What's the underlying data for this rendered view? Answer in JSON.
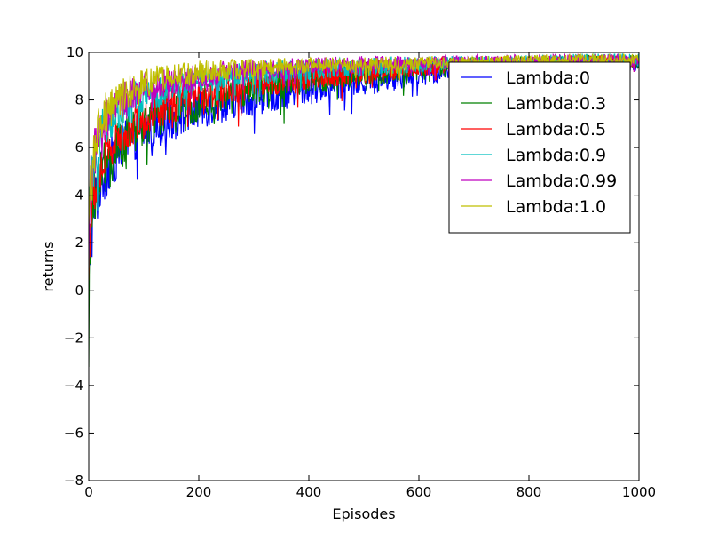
{
  "chart_data": {
    "type": "line",
    "title": "",
    "xlabel": "Episodes",
    "ylabel": "returns",
    "xlim": [
      0,
      1000
    ],
    "ylim": [
      -8,
      10
    ],
    "xticks": [
      "0",
      "200",
      "400",
      "600",
      "800",
      "1000"
    ],
    "yticks": [
      "−8",
      "−6",
      "−4",
      "−2",
      "0",
      "2",
      "4",
      "6",
      "8",
      "10"
    ],
    "grid": false,
    "legend_position": "top-right",
    "x_checkpoints": [
      0,
      1,
      2,
      5,
      10,
      20,
      30,
      50,
      75,
      100,
      150,
      200,
      250,
      300,
      400,
      500,
      600,
      700,
      800,
      900,
      1000
    ],
    "series": [
      {
        "name": "Lambda:0",
        "color": "#0000ff",
        "trend": [
          -1.0,
          0.5,
          1.5,
          2.5,
          3.5,
          4.5,
          5.0,
          5.7,
          6.3,
          6.7,
          7.2,
          7.6,
          7.9,
          8.1,
          8.5,
          8.8,
          9.1,
          9.3,
          9.4,
          9.5,
          9.55
        ],
        "spread": [
          1.5,
          1.5,
          1.5,
          1.5,
          1.4,
          1.3,
          1.2,
          1.1,
          1.0,
          0.95,
          0.9,
          0.85,
          0.8,
          0.75,
          0.7,
          0.6,
          0.5,
          0.45,
          0.4,
          0.35,
          0.35
        ]
      },
      {
        "name": "Lambda:0.3",
        "color": "#008000",
        "trend": [
          -2.0,
          0.0,
          1.0,
          2.5,
          3.8,
          4.8,
          5.4,
          6.0,
          6.5,
          7.0,
          7.5,
          7.9,
          8.2,
          8.5,
          8.8,
          9.1,
          9.3,
          9.45,
          9.5,
          9.55,
          9.6
        ],
        "spread": [
          1.5,
          1.5,
          1.5,
          1.4,
          1.3,
          1.2,
          1.1,
          1.0,
          0.95,
          0.9,
          0.85,
          0.8,
          0.75,
          0.7,
          0.6,
          0.55,
          0.45,
          0.4,
          0.35,
          0.35,
          0.3
        ]
      },
      {
        "name": "Lambda:0.5",
        "color": "#ff0000",
        "trend": [
          0.5,
          1.5,
          2.5,
          3.5,
          4.3,
          5.0,
          5.6,
          6.3,
          6.8,
          7.3,
          7.8,
          8.2,
          8.5,
          8.7,
          9.0,
          9.2,
          9.4,
          9.5,
          9.55,
          9.6,
          9.6
        ],
        "spread": [
          1.4,
          1.4,
          1.3,
          1.3,
          1.2,
          1.1,
          1.0,
          0.95,
          0.9,
          0.85,
          0.8,
          0.7,
          0.65,
          0.6,
          0.55,
          0.5,
          0.4,
          0.35,
          0.3,
          0.3,
          0.3
        ]
      },
      {
        "name": "Lambda:0.9",
        "color": "#00bfbf",
        "trend": [
          1.5,
          2.5,
          3.5,
          4.5,
          5.5,
          6.4,
          7.0,
          7.5,
          7.9,
          8.2,
          8.5,
          8.8,
          9.0,
          9.1,
          9.3,
          9.4,
          9.5,
          9.55,
          9.6,
          9.65,
          9.65
        ],
        "spread": [
          1.3,
          1.3,
          1.3,
          1.2,
          1.1,
          1.0,
          0.9,
          0.85,
          0.8,
          0.75,
          0.7,
          0.6,
          0.55,
          0.5,
          0.45,
          0.4,
          0.35,
          0.3,
          0.3,
          0.3,
          0.3
        ]
      },
      {
        "name": "Lambda:0.99",
        "color": "#bf00bf",
        "trend": [
          2.0,
          3.0,
          3.8,
          4.8,
          5.7,
          6.5,
          7.2,
          7.8,
          8.2,
          8.5,
          8.8,
          9.0,
          9.15,
          9.25,
          9.4,
          9.5,
          9.55,
          9.6,
          9.65,
          9.7,
          9.7
        ],
        "spread": [
          1.3,
          1.3,
          1.3,
          1.2,
          1.1,
          1.0,
          0.9,
          0.8,
          0.75,
          0.7,
          0.6,
          0.55,
          0.5,
          0.45,
          0.4,
          0.35,
          0.3,
          0.3,
          0.3,
          0.25,
          0.25
        ]
      },
      {
        "name": "Lambda:1.0",
        "color": "#bfbf00",
        "trend": [
          2.5,
          3.3,
          4.0,
          5.0,
          5.9,
          6.8,
          7.4,
          8.0,
          8.4,
          8.7,
          9.0,
          9.15,
          9.25,
          9.35,
          9.45,
          9.5,
          9.55,
          9.6,
          9.65,
          9.7,
          9.7
        ],
        "spread": [
          1.3,
          1.3,
          1.3,
          1.2,
          1.1,
          1.0,
          0.9,
          0.8,
          0.7,
          0.65,
          0.55,
          0.5,
          0.45,
          0.4,
          0.35,
          0.3,
          0.3,
          0.25,
          0.25,
          0.25,
          0.25
        ]
      }
    ]
  }
}
